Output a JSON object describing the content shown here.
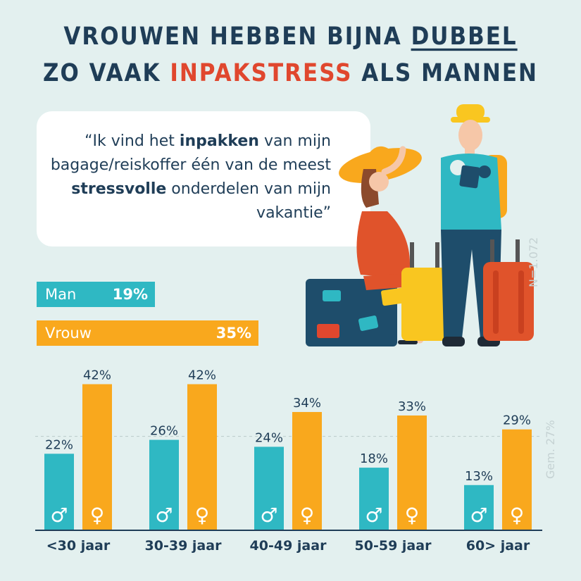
{
  "title": {
    "line1_a": "VROUWEN HEBBEN BIJNA ",
    "line1_b": "DUBBEL",
    "line2_a": "ZO VAAK ",
    "line2_b": "INPAKSTRESS",
    "line2_c": " ALS MANNEN"
  },
  "quote": {
    "p1": "“Ik vind het ",
    "b1": "inpakken",
    "p2": " van mijn bagage/reiskoffer één van de meest ",
    "b2": "stressvolle",
    "p3": " onderdelen van mijn vakantie”"
  },
  "totals": {
    "man_label": "Man",
    "man_pct": "19%",
    "vrouw_label": "Vrouw",
    "vrouw_pct": "35%"
  },
  "n_label": "N=1.072",
  "avg_label": "Gem. 27%",
  "colors": {
    "man": "#2fb8c3",
    "vrouw": "#f9a81d",
    "title": "#1f3d57",
    "accent": "#e0472e"
  },
  "chart_data": [
    {
      "type": "bar",
      "categories": [
        "Man",
        "Vrouw"
      ],
      "values": [
        19,
        35
      ],
      "xlabel": "",
      "ylabel": ""
    },
    {
      "type": "bar",
      "categories": [
        "<30 jaar",
        "30-39 jaar",
        "40-49 jaar",
        "50-59 jaar",
        "60> jaar"
      ],
      "series": [
        {
          "values": [
            22,
            26,
            24,
            18,
            13
          ],
          "labels": [
            "22%",
            "26%",
            "24%",
            "18%",
            "13%"
          ],
          "symbol": "♂"
        },
        {
          "values": [
            42,
            42,
            34,
            33,
            29
          ],
          "labels": [
            "42%",
            "42%",
            "34%",
            "33%",
            "29%"
          ],
          "symbol": "♀"
        }
      ],
      "reference_line": {
        "value": 27,
        "label": "Gem. 27%"
      },
      "ylim": [
        0,
        50
      ],
      "grid": false,
      "legend": "none",
      "xlabel": "",
      "ylabel": ""
    }
  ]
}
